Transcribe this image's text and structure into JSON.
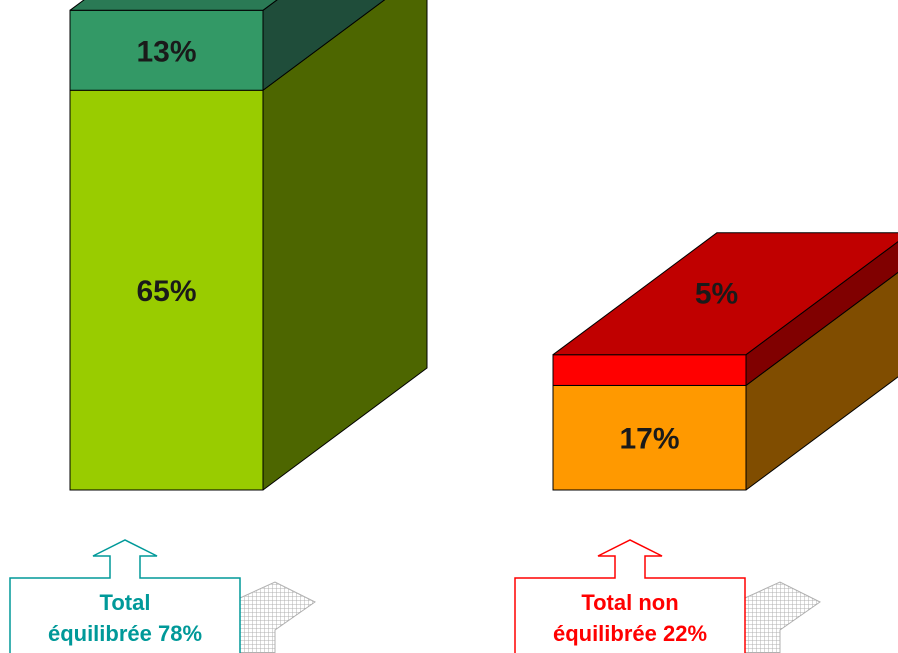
{
  "chart_data": {
    "type": "bar",
    "style": "3d-stacked",
    "categories": [
      "Total équilibrée 78%",
      "Total non équilibrée 22%"
    ],
    "stacks": [
      {
        "category": "Total équilibrée 78%",
        "total": 78,
        "segments": [
          {
            "value": 65,
            "label": "65%",
            "front": "#99cc00",
            "side": "#4d6600",
            "top": "#2a7a55"
          },
          {
            "value": 13,
            "label": "13%",
            "front": "#339966",
            "side": "#1f4d3a",
            "top": "#2a7a55"
          }
        ],
        "callout": {
          "line1": "Total",
          "line2": "équilibrée 78%",
          "color": "#009999"
        }
      },
      {
        "category": "Total non équilibrée 22%",
        "total": 22,
        "segments": [
          {
            "value": 17,
            "label": "17%",
            "front": "#ff9900",
            "side": "#804d00",
            "top": "#c00000"
          },
          {
            "value": 5,
            "label": "5%",
            "front": "#ff0000",
            "side": "#800000",
            "top": "#c00000"
          }
        ],
        "callout": {
          "line1": "Total non",
          "line2": "équilibrée 22%",
          "color": "#ff0000"
        }
      }
    ],
    "grid": false,
    "legend": "none"
  }
}
